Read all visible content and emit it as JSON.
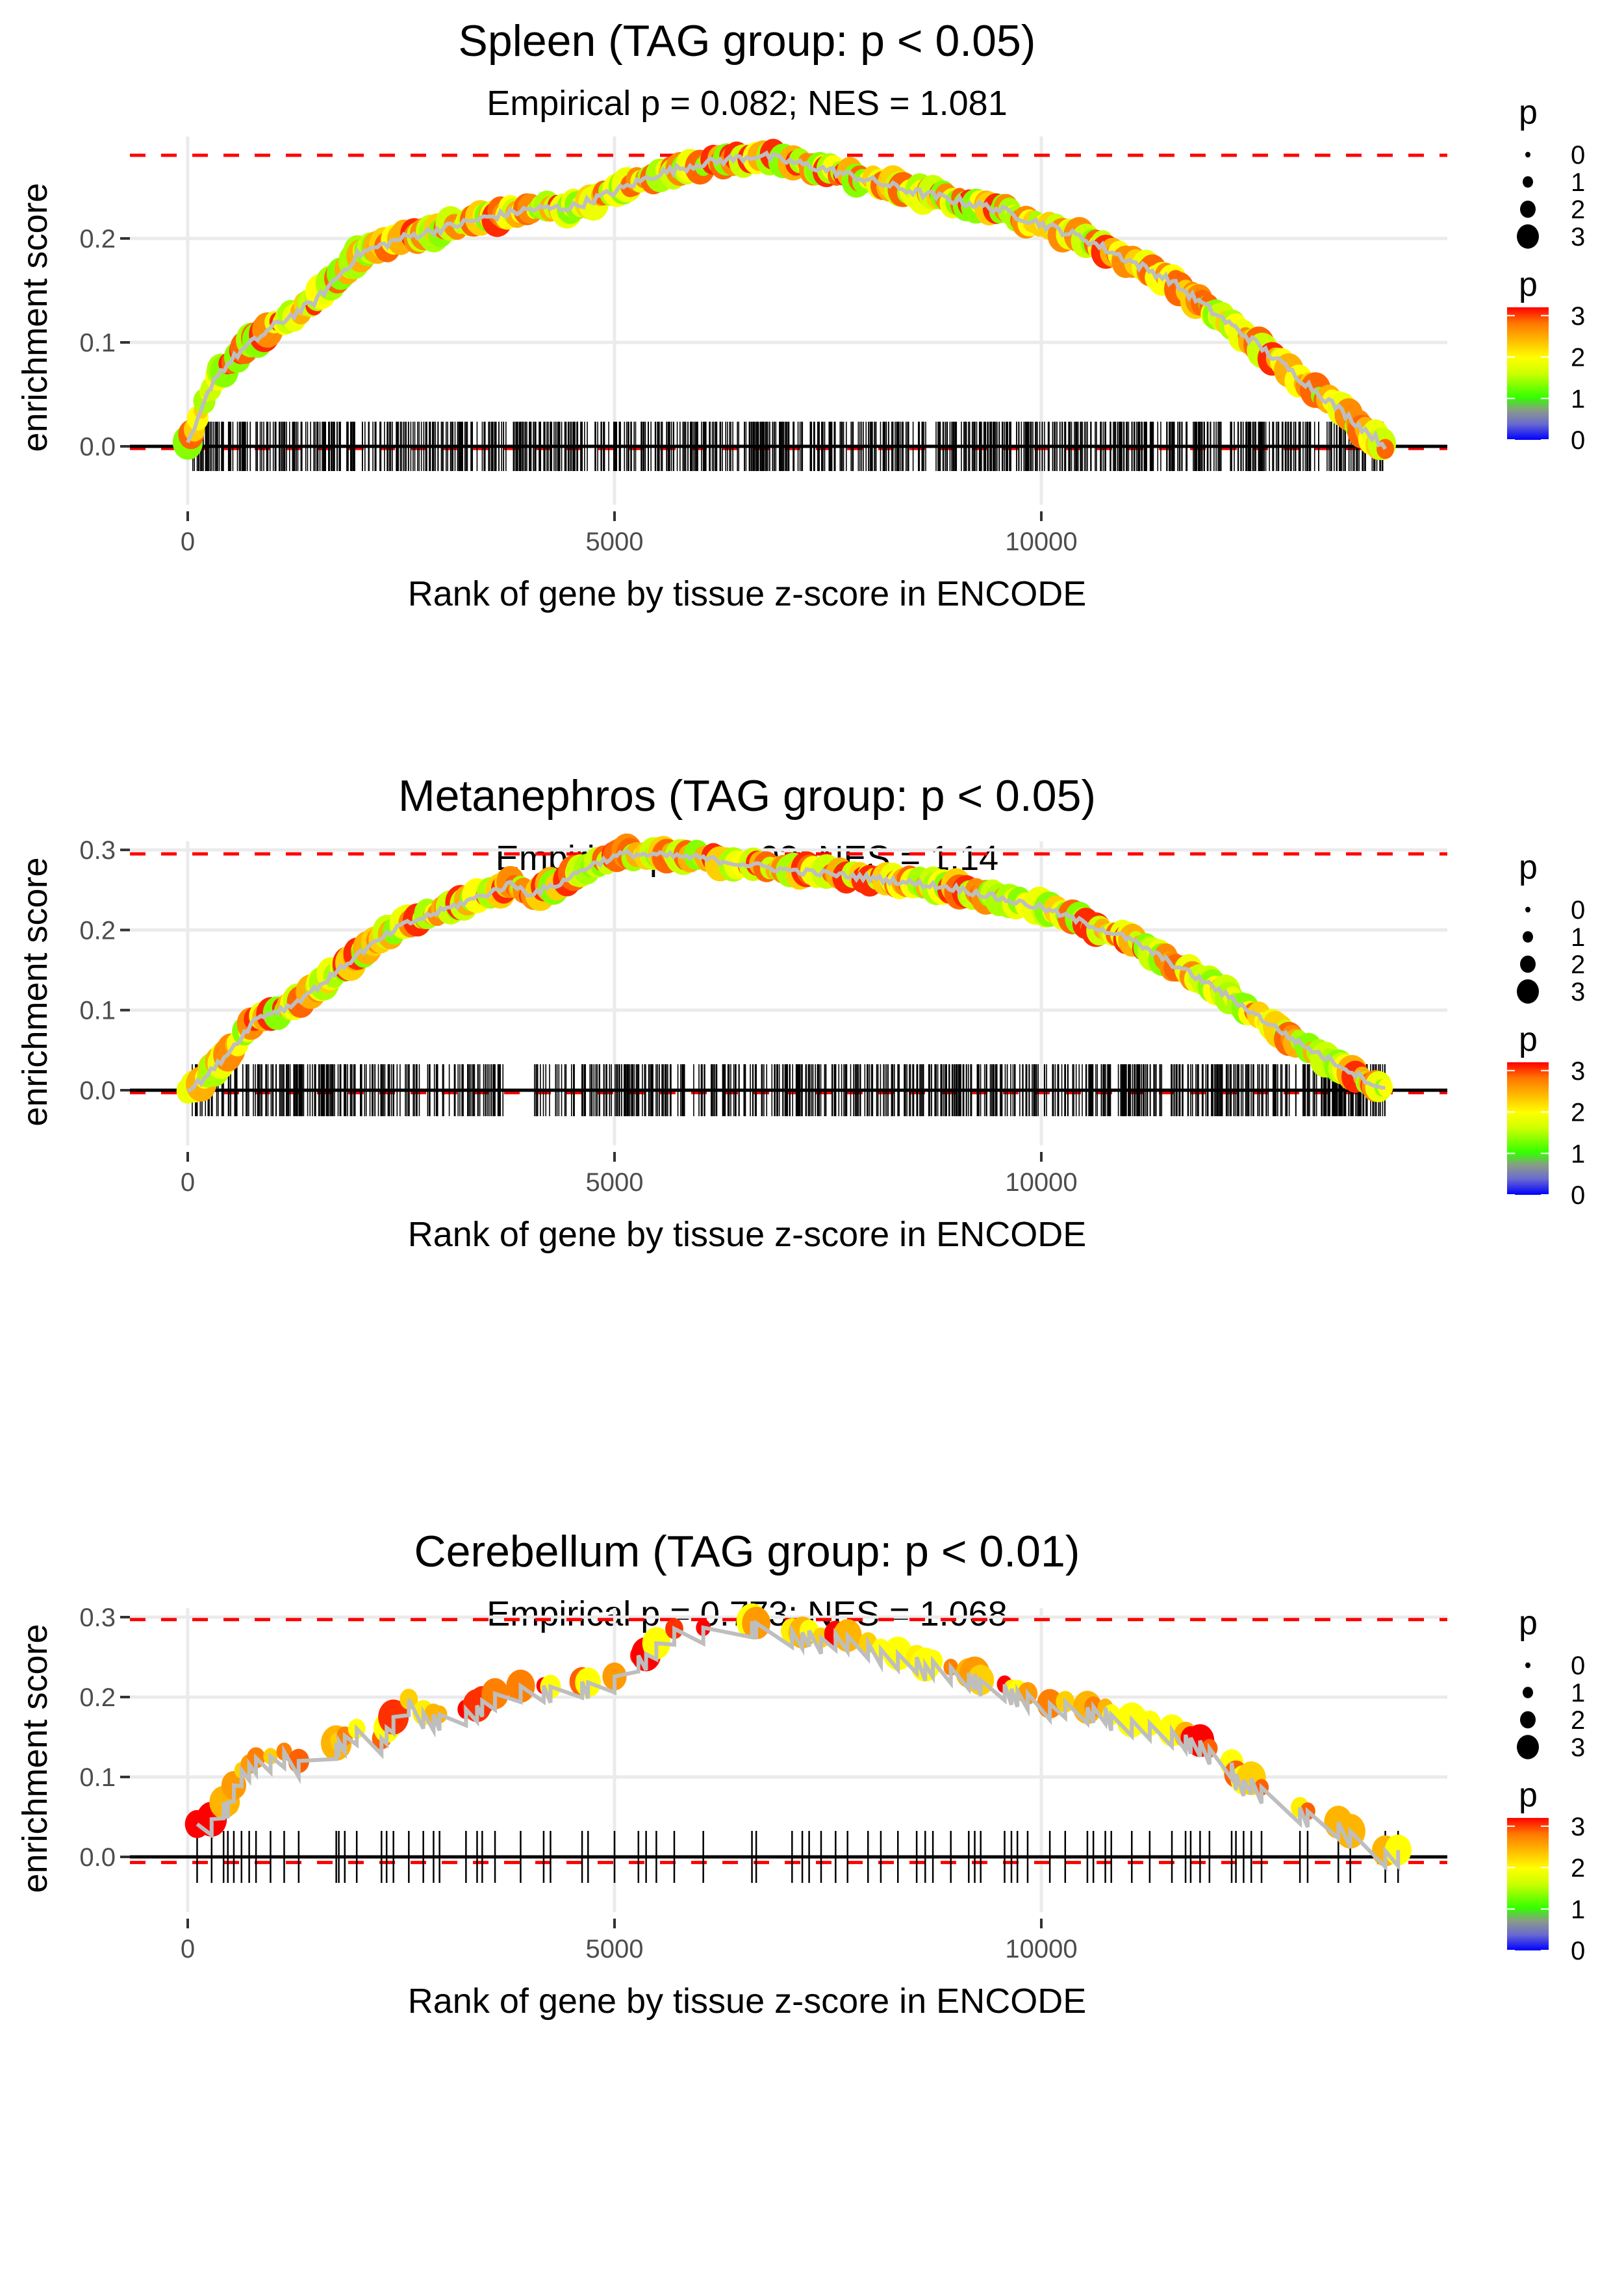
{
  "chart_data": [
    {
      "type": "line",
      "title": "Spleen (TAG group: p < 0.05)",
      "subtitle": "Empirical p = 0.082; NES = 1.081",
      "xlabel": "Rank of gene by tissue z-score in ENCODE",
      "ylabel": "enrichment score",
      "xlim": [
        -700,
        14700
      ],
      "ylim": [
        -0.03,
        0.305
      ],
      "x_ticks": [
        0,
        5000,
        10000
      ],
      "x_tick_labels": [
        "0",
        "5000",
        "10000"
      ],
      "y_ticks": [
        0.0,
        0.1,
        0.2
      ],
      "y_tick_labels": [
        "0.0",
        "0.1",
        "0.2"
      ],
      "max_es_line": 0.28,
      "min_es_line": -0.002,
      "rug": {
        "density": "dense",
        "start": 50,
        "end": 14030,
        "count": 900,
        "gaps": []
      },
      "curve_keypoints": [
        [
          0,
          0.0
        ],
        [
          100,
          0.02
        ],
        [
          300,
          0.065
        ],
        [
          600,
          0.09
        ],
        [
          1000,
          0.115
        ],
        [
          1500,
          0.14
        ],
        [
          2000,
          0.185
        ],
        [
          2500,
          0.2
        ],
        [
          3000,
          0.21
        ],
        [
          3500,
          0.22
        ],
        [
          4000,
          0.228
        ],
        [
          4500,
          0.23
        ],
        [
          5000,
          0.245
        ],
        [
          5500,
          0.262
        ],
        [
          6000,
          0.272
        ],
        [
          6700,
          0.28
        ],
        [
          7500,
          0.266
        ],
        [
          8500,
          0.245
        ],
        [
          9500,
          0.228
        ],
        [
          10500,
          0.2
        ],
        [
          11500,
          0.16
        ],
        [
          12500,
          0.1
        ],
        [
          13500,
          0.035
        ],
        [
          14030,
          0.0
        ]
      ],
      "color_mix": "green-yellow-orange",
      "legend_size": {
        "title": "p",
        "labels": [
          "0",
          "1",
          "2",
          "3"
        ]
      },
      "legend_color": {
        "title": "p",
        "labels": [
          "3",
          "2",
          "1",
          "0"
        ],
        "range": [
          0,
          3.2
        ]
      }
    },
    {
      "type": "line",
      "title": "Metanephros (TAG group: p < 0.05)",
      "subtitle": "Empirical p = 9e-03; NES = 1.14",
      "xlabel": "Rank of gene by tissue z-score in ENCODE",
      "ylabel": "enrichment score",
      "xlim": [
        -700,
        14700
      ],
      "ylim": [
        -0.035,
        0.31
      ],
      "x_ticks": [
        0,
        5000,
        10000
      ],
      "x_tick_labels": [
        "0",
        "5000",
        "10000"
      ],
      "y_ticks": [
        0.0,
        0.1,
        0.2,
        0.3
      ],
      "y_tick_labels": [
        "0.0",
        "0.1",
        "0.2",
        "0.3"
      ],
      "max_es_line": 0.295,
      "min_es_line": -0.003,
      "rug": {
        "density": "dense",
        "start": 50,
        "end": 14030,
        "count": 850,
        "gaps": [
          [
            3700,
            4000
          ]
        ]
      },
      "curve_keypoints": [
        [
          0,
          0.0
        ],
        [
          200,
          0.015
        ],
        [
          500,
          0.05
        ],
        [
          800,
          0.09
        ],
        [
          1200,
          0.105
        ],
        [
          1600,
          0.135
        ],
        [
          2000,
          0.17
        ],
        [
          2500,
          0.205
        ],
        [
          3000,
          0.225
        ],
        [
          3500,
          0.245
        ],
        [
          3800,
          0.258
        ],
        [
          4000,
          0.245
        ],
        [
          4300,
          0.255
        ],
        [
          4700,
          0.28
        ],
        [
          5100,
          0.295
        ],
        [
          5600,
          0.293
        ],
        [
          6000,
          0.29
        ],
        [
          7000,
          0.275
        ],
        [
          8000,
          0.265
        ],
        [
          9000,
          0.252
        ],
        [
          10000,
          0.228
        ],
        [
          11000,
          0.19
        ],
        [
          12000,
          0.13
        ],
        [
          13000,
          0.06
        ],
        [
          14030,
          0.0
        ]
      ],
      "color_mix": "green-yellow-orange",
      "legend_size": {
        "title": "p",
        "labels": [
          "0",
          "1",
          "2",
          "3"
        ]
      },
      "legend_color": {
        "title": "p",
        "labels": [
          "3",
          "2",
          "1",
          "0"
        ],
        "range": [
          0,
          3.2
        ]
      }
    },
    {
      "type": "line",
      "title": "Cerebellum (TAG group: p < 0.01)",
      "subtitle": "Empirical p = 0.773; NES = 1.068",
      "xlabel": "Rank of gene by tissue z-score in ENCODE",
      "ylabel": "enrichment score",
      "xlim": [
        -700,
        14700
      ],
      "ylim": [
        -0.035,
        0.31
      ],
      "x_ticks": [
        0,
        5000,
        10000
      ],
      "x_tick_labels": [
        "0",
        "5000",
        "10000"
      ],
      "y_ticks": [
        0.0,
        0.1,
        0.2,
        0.3
      ],
      "y_tick_labels": [
        "0.0",
        "0.1",
        "0.2",
        "0.3"
      ],
      "max_es_line": 0.297,
      "min_es_line": -0.007,
      "rug": {
        "density": "sparse",
        "ticks": [
          110,
          280,
          420,
          470,
          540,
          630,
          720,
          800,
          970,
          1130,
          1300,
          1740,
          1770,
          1840,
          1980,
          2270,
          2330,
          2410,
          2590,
          2760,
          2880,
          2950,
          3260,
          3390,
          3450,
          3600,
          3900,
          4170,
          4250,
          4620,
          4690,
          5000,
          5280,
          5370,
          5490,
          5700,
          6040,
          6610,
          6660,
          7080,
          7200,
          7280,
          7420,
          7590,
          7730,
          7970,
          8120,
          8320,
          8540,
          8640,
          8730,
          8940,
          9150,
          9220,
          9290,
          9570,
          9650,
          9720,
          9840,
          10100,
          10280,
          10540,
          10610,
          10750,
          10820,
          11060,
          11270,
          11530,
          11690,
          11750,
          11860,
          11970,
          12230,
          12280,
          12370,
          12460,
          12580,
          13030,
          13120,
          13480,
          13620,
          14030,
          14180
        ]
      },
      "curve_keypoints": [
        [
          0,
          0.0
        ],
        [
          100,
          0.035
        ],
        [
          400,
          0.06
        ],
        [
          600,
          0.1
        ],
        [
          900,
          0.13
        ],
        [
          1100,
          0.135
        ],
        [
          1300,
          0.115
        ],
        [
          1500,
          0.13
        ],
        [
          1700,
          0.145
        ],
        [
          1900,
          0.16
        ],
        [
          2200,
          0.14
        ],
        [
          2400,
          0.17
        ],
        [
          2600,
          0.2
        ],
        [
          2800,
          0.18
        ],
        [
          3200,
          0.175
        ],
        [
          3600,
          0.2
        ],
        [
          4000,
          0.215
        ],
        [
          4500,
          0.22
        ],
        [
          5000,
          0.23
        ],
        [
          5400,
          0.26
        ],
        [
          5700,
          0.29
        ],
        [
          6100,
          0.285
        ],
        [
          6500,
          0.297
        ],
        [
          6900,
          0.275
        ],
        [
          7300,
          0.28
        ],
        [
          7600,
          0.28
        ],
        [
          8200,
          0.255
        ],
        [
          8500,
          0.25
        ],
        [
          9000,
          0.235
        ],
        [
          9500,
          0.215
        ],
        [
          10000,
          0.195
        ],
        [
          10600,
          0.19
        ],
        [
          11200,
          0.17
        ],
        [
          11800,
          0.145
        ],
        [
          12400,
          0.1
        ],
        [
          13200,
          0.055
        ],
        [
          13800,
          0.025
        ],
        [
          14030,
          0.005
        ]
      ],
      "color_mix": "yellow-orange-red",
      "legend_size": {
        "title": "p",
        "labels": [
          "0",
          "1",
          "2",
          "3"
        ]
      },
      "legend_color": {
        "title": "p",
        "labels": [
          "3",
          "2",
          "1",
          "0"
        ],
        "range": [
          0,
          3.2
        ]
      }
    }
  ]
}
